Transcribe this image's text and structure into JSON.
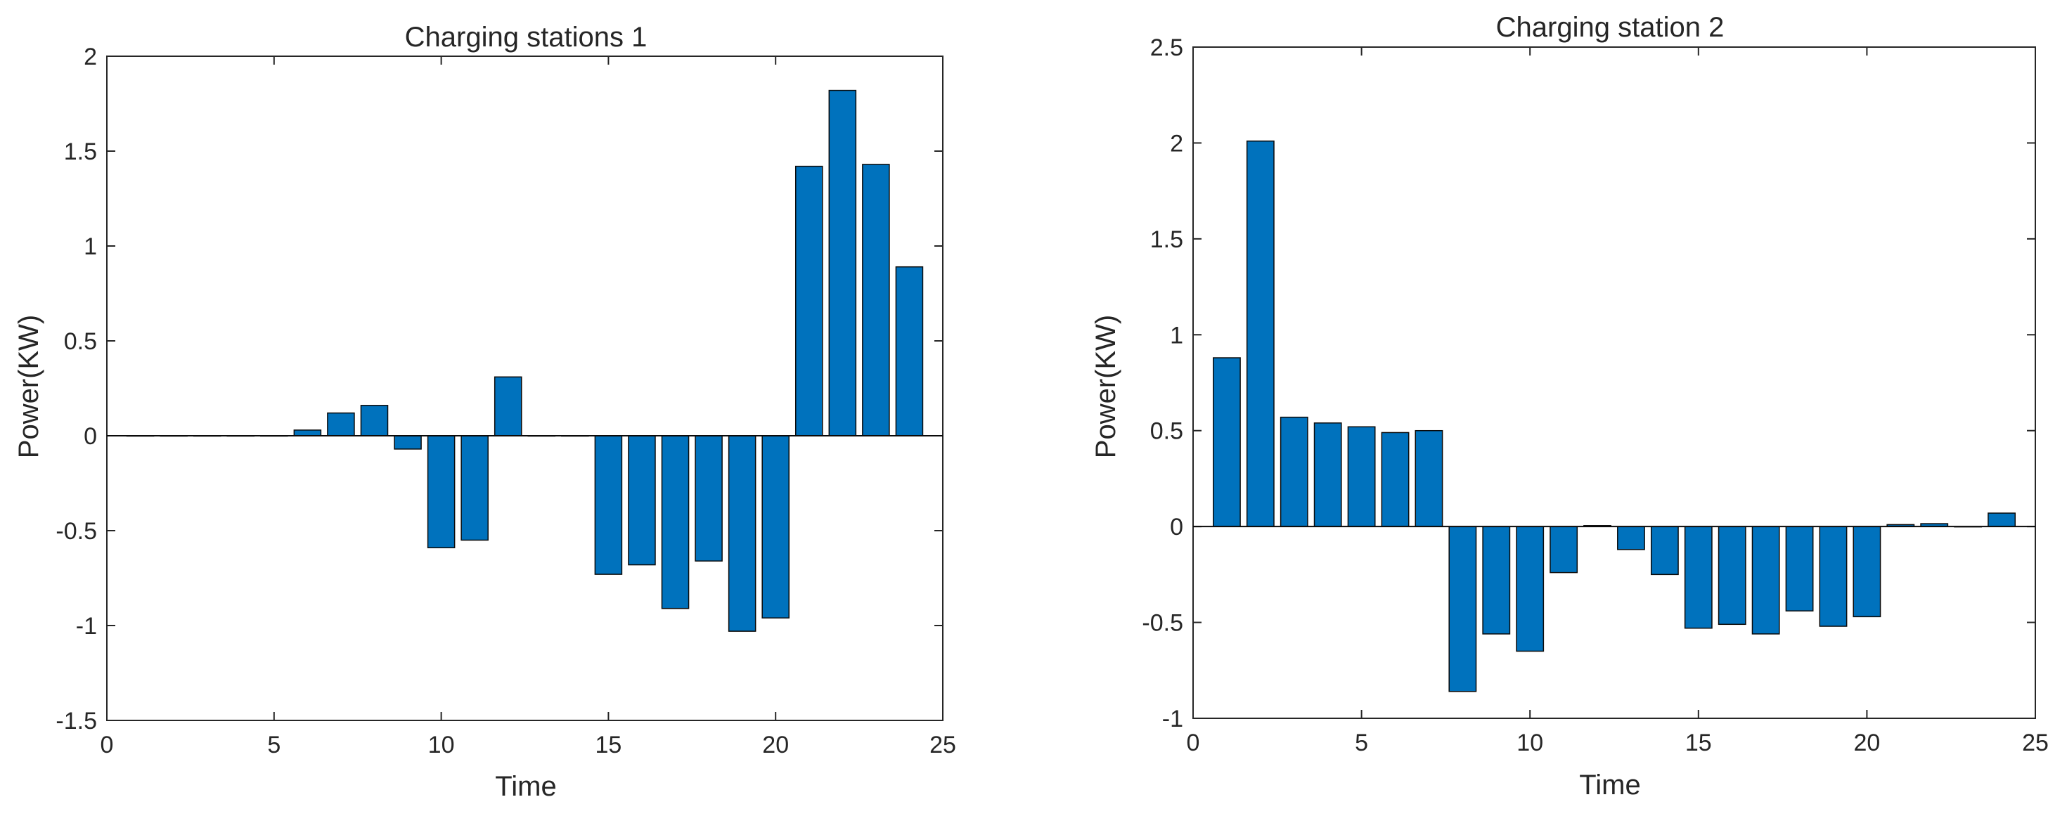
{
  "colors": {
    "bar_fill": "#0072BD",
    "bar_edge": "#0a0a0a",
    "axis": "#262626",
    "background": "#ffffff"
  },
  "chart_data": [
    {
      "type": "bar",
      "title": "Charging stations 1",
      "xlabel": "Time",
      "ylabel": "Power(KW)",
      "xlim": [
        0,
        25
      ],
      "ylim": [
        -1.5,
        2
      ],
      "xticks": [
        "0",
        "5",
        "10",
        "15",
        "20",
        "25"
      ],
      "yticks": [
        "-1.5",
        "-1",
        "-0.5",
        "0",
        "0.5",
        "1",
        "1.5",
        "2"
      ],
      "categories": [
        1,
        2,
        3,
        4,
        5,
        6,
        7,
        8,
        9,
        10,
        11,
        12,
        13,
        14,
        15,
        16,
        17,
        18,
        19,
        20,
        21,
        22,
        23,
        24
      ],
      "values": [
        0,
        0,
        0,
        0,
        0,
        0.03,
        0.12,
        0.16,
        -0.07,
        -0.59,
        -0.55,
        0.31,
        0,
        0,
        -0.73,
        -0.68,
        -0.91,
        -0.66,
        -1.03,
        -0.96,
        1.42,
        1.82,
        1.43,
        0.89
      ]
    },
    {
      "type": "bar",
      "title": "Charging station 2",
      "xlabel": "Time",
      "ylabel": "Power(KW)",
      "xlim": [
        0,
        25
      ],
      "ylim": [
        -1,
        2.5
      ],
      "xticks": [
        "0",
        "5",
        "10",
        "15",
        "20",
        "25"
      ],
      "yticks": [
        "-1",
        "-0.5",
        "0",
        "0.5",
        "1",
        "1.5",
        "2",
        "2.5"
      ],
      "categories": [
        1,
        2,
        3,
        4,
        5,
        6,
        7,
        8,
        9,
        10,
        11,
        12,
        13,
        14,
        15,
        16,
        17,
        18,
        19,
        20,
        21,
        22,
        23,
        24
      ],
      "values": [
        0.88,
        2.01,
        0.57,
        0.54,
        0.52,
        0.49,
        0.5,
        -0.86,
        -0.56,
        -0.65,
        -0.24,
        0.005,
        -0.12,
        -0.25,
        -0.53,
        -0.51,
        -0.56,
        -0.44,
        -0.52,
        -0.47,
        0.01,
        0.015,
        0,
        0.07
      ]
    }
  ]
}
